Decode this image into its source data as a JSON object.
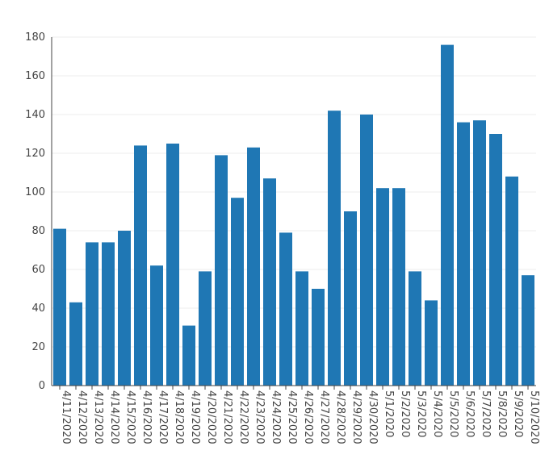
{
  "chart_data": {
    "type": "bar",
    "title": "",
    "xlabel": "",
    "ylabel": "",
    "categories": [
      "4/11/2020",
      "4/12/2020",
      "4/13/2020",
      "4/14/2020",
      "4/15/2020",
      "4/16/2020",
      "4/17/2020",
      "4/18/2020",
      "4/19/2020",
      "4/20/2020",
      "4/21/2020",
      "4/22/2020",
      "4/23/2020",
      "4/24/2020",
      "4/25/2020",
      "4/26/2020",
      "4/27/2020",
      "4/28/2020",
      "4/29/2020",
      "4/30/2020",
      "5/1/2020",
      "5/2/2020",
      "5/3/2020",
      "5/4/2020",
      "5/5/2020",
      "5/6/2020",
      "5/7/2020",
      "5/8/2020",
      "5/9/2020",
      "5/10/2020"
    ],
    "values": [
      81,
      43,
      74,
      74,
      80,
      124,
      62,
      125,
      31,
      59,
      119,
      97,
      123,
      107,
      79,
      59,
      50,
      142,
      90,
      140,
      102,
      102,
      59,
      44,
      176,
      136,
      137,
      130,
      108,
      57
    ],
    "ylim": [
      0,
      180
    ],
    "yticks": [
      0,
      20,
      40,
      60,
      80,
      100,
      120,
      140,
      160,
      180
    ],
    "grid": true,
    "legend": "none",
    "bar_color": "#1f77b4"
  }
}
